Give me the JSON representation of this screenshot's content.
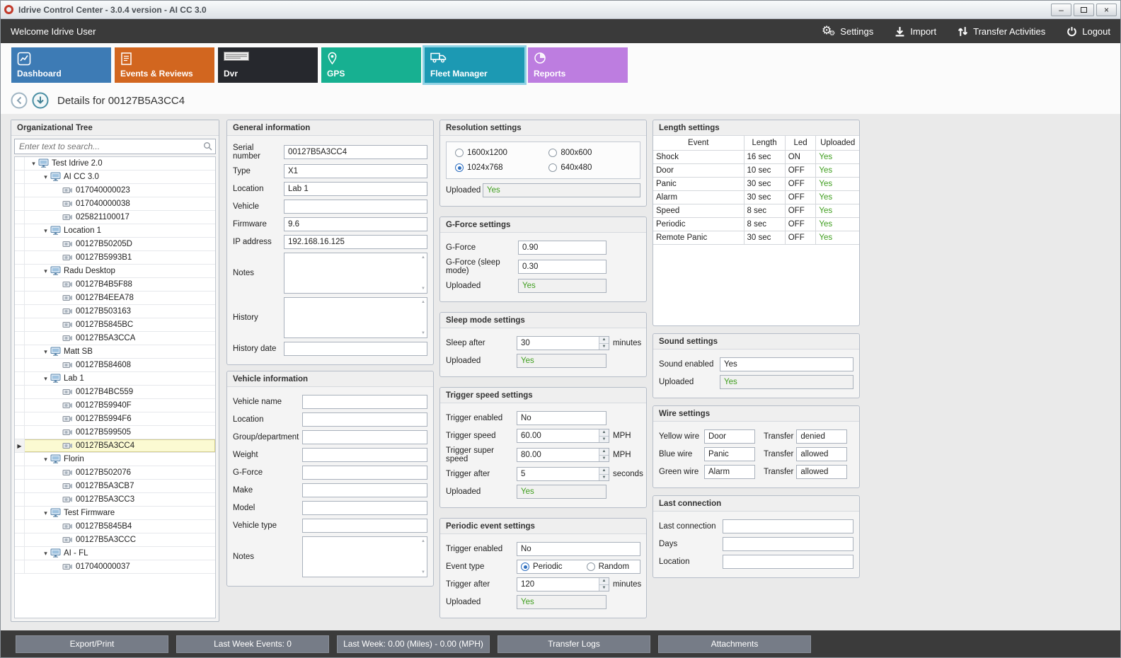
{
  "window": {
    "title": "Idrive Control Center - 3.0.4 version - AI CC 3.0"
  },
  "toolbar": {
    "welcome": "Welcome Idrive User",
    "actions": [
      {
        "label": "Settings",
        "icon": "gears-icon"
      },
      {
        "label": "Import",
        "icon": "import-icon"
      },
      {
        "label": "Transfer Activities",
        "icon": "transfer-icon"
      },
      {
        "label": "Logout",
        "icon": "power-icon"
      }
    ]
  },
  "tabs": [
    {
      "label": "Dashboard",
      "icon": "line-chart-icon",
      "color": "#3d7bb5",
      "active": false
    },
    {
      "label": "Events & Reviews",
      "icon": "events-icon",
      "color": "#d2661f",
      "active": false
    },
    {
      "label": "Dvr",
      "icon": "dvr-logo-icon",
      "color": "#26282d",
      "active": false
    },
    {
      "label": "GPS",
      "icon": "map-pin-icon",
      "color": "#17b091",
      "active": false
    },
    {
      "label": "Fleet Manager",
      "icon": "truck-icon",
      "color": "#1c99b3",
      "active": true
    },
    {
      "label": "Reports",
      "icon": "pie-chart-icon",
      "color": "#bd7de0",
      "active": false
    }
  ],
  "details_title": "Details for 00127B5A3CC4",
  "tree": {
    "title": "Organizational Tree",
    "search_placeholder": "Enter text to search...",
    "items": [
      {
        "label": "Test Idrive 2.0",
        "depth": 0,
        "type": "group"
      },
      {
        "label": "AI CC 3.0",
        "depth": 1,
        "type": "group"
      },
      {
        "label": "017040000023",
        "depth": 2,
        "type": "device"
      },
      {
        "label": "017040000038",
        "depth": 2,
        "type": "device"
      },
      {
        "label": "025821100017",
        "depth": 2,
        "type": "device"
      },
      {
        "label": "Location 1",
        "depth": 1,
        "type": "group"
      },
      {
        "label": "00127B50205D",
        "depth": 2,
        "type": "device"
      },
      {
        "label": "00127B5993B1",
        "depth": 2,
        "type": "device"
      },
      {
        "label": "Radu Desktop",
        "depth": 1,
        "type": "group"
      },
      {
        "label": "00127B4B5F88",
        "depth": 2,
        "type": "device"
      },
      {
        "label": "00127B4EEA78",
        "depth": 2,
        "type": "device"
      },
      {
        "label": "00127B503163",
        "depth": 2,
        "type": "device"
      },
      {
        "label": "00127B5845BC",
        "depth": 2,
        "type": "device"
      },
      {
        "label": "00127B5A3CCA",
        "depth": 2,
        "type": "device"
      },
      {
        "label": "Matt SB",
        "depth": 1,
        "type": "group"
      },
      {
        "label": "00127B584608",
        "depth": 2,
        "type": "device"
      },
      {
        "label": "Lab 1",
        "depth": 1,
        "type": "group"
      },
      {
        "label": "00127B4BC559",
        "depth": 2,
        "type": "device"
      },
      {
        "label": "00127B59940F",
        "depth": 2,
        "type": "device"
      },
      {
        "label": "00127B5994F6",
        "depth": 2,
        "type": "device"
      },
      {
        "label": "00127B599505",
        "depth": 2,
        "type": "device"
      },
      {
        "label": "00127B5A3CC4",
        "depth": 2,
        "type": "device",
        "selected": true
      },
      {
        "label": "Florin",
        "depth": 1,
        "type": "group"
      },
      {
        "label": "00127B502076",
        "depth": 2,
        "type": "device"
      },
      {
        "label": "00127B5A3CB7",
        "depth": 2,
        "type": "device"
      },
      {
        "label": "00127B5A3CC3",
        "depth": 2,
        "type": "device"
      },
      {
        "label": "Test Firmware",
        "depth": 1,
        "type": "group"
      },
      {
        "label": "00127B5845B4",
        "depth": 2,
        "type": "device"
      },
      {
        "label": "00127B5A3CCC",
        "depth": 2,
        "type": "device"
      },
      {
        "label": "AI - FL",
        "depth": 1,
        "type": "group"
      },
      {
        "label": "017040000037",
        "depth": 2,
        "type": "device"
      }
    ]
  },
  "panels": {
    "general_info": {
      "title": "General information",
      "fields": [
        {
          "label": "Serial number",
          "value": "00127B5A3CC4"
        },
        {
          "label": "Type",
          "value": "X1"
        },
        {
          "label": "Location",
          "value": "Lab 1"
        },
        {
          "label": "Vehicle",
          "value": ""
        },
        {
          "label": "Firmware",
          "value": "9.6"
        },
        {
          "label": "IP address",
          "value": "192.168.16.125"
        },
        {
          "label": "Notes",
          "value": "",
          "type": "textarea"
        },
        {
          "label": "History",
          "value": "",
          "type": "textarea"
        },
        {
          "label": "History date",
          "value": ""
        }
      ]
    },
    "vehicle_info": {
      "title": "Vehicle information",
      "fields": [
        {
          "label": "Vehicle name",
          "value": ""
        },
        {
          "label": "Location",
          "value": ""
        },
        {
          "label": "Group/department",
          "value": ""
        },
        {
          "label": "Weight",
          "value": ""
        },
        {
          "label": "G-Force",
          "value": ""
        },
        {
          "label": "Make",
          "value": ""
        },
        {
          "label": "Model",
          "value": ""
        },
        {
          "label": "Vehicle type",
          "value": ""
        },
        {
          "label": "Notes",
          "value": "",
          "type": "textarea"
        }
      ]
    },
    "resolution": {
      "title": "Resolution settings",
      "options": [
        {
          "label": "1600x1200",
          "checked": false
        },
        {
          "label": "800x600",
          "checked": false
        },
        {
          "label": "1024x768",
          "checked": true
        },
        {
          "label": "640x480",
          "checked": false
        }
      ],
      "fields": [
        {
          "label": "Uploaded",
          "value": "Yes",
          "readonly": true,
          "green": true
        }
      ]
    },
    "gforce": {
      "title": "G-Force settings",
      "fields": [
        {
          "label": "G-Force",
          "value": "0.90",
          "short": true
        },
        {
          "label": "G-Force (sleep mode)",
          "value": "0.30",
          "short": true
        },
        {
          "label": "Uploaded",
          "value": "Yes",
          "readonly": true,
          "green": true,
          "short": true
        }
      ]
    },
    "sleep": {
      "title": "Sleep mode settings",
      "fields": [
        {
          "label": "Sleep after",
          "value": "30",
          "unit": "minutes",
          "spinner": true
        },
        {
          "label": "Uploaded",
          "value": "Yes",
          "readonly": true,
          "green": true,
          "short": true
        }
      ]
    },
    "trigger_speed": {
      "title": "Trigger speed settings",
      "fields": [
        {
          "label": "Trigger enabled",
          "value": "No",
          "short": true
        },
        {
          "label": "Trigger speed",
          "value": "60.00",
          "unit": "MPH",
          "spinner": true
        },
        {
          "label": "Trigger super speed",
          "value": "80.00",
          "unit": "MPH",
          "spinner": true
        },
        {
          "label": "Trigger after",
          "value": "5",
          "unit": "seconds",
          "spinner": true
        },
        {
          "label": "Uploaded",
          "value": "Yes",
          "readonly": true,
          "green": true,
          "short": true
        }
      ]
    },
    "periodic": {
      "title": "Periodic event settings",
      "fields_top": [
        {
          "label": "Trigger enabled",
          "value": "No"
        }
      ],
      "event_type": {
        "label": "Event type",
        "options": [
          {
            "label": "Periodic",
            "checked": true
          },
          {
            "label": "Random",
            "checked": false
          }
        ]
      },
      "fields_bottom": [
        {
          "label": "Trigger after",
          "value": "120",
          "unit": "minutes",
          "spinner": true
        },
        {
          "label": "Uploaded",
          "value": "Yes",
          "readonly": true,
          "green": true,
          "short": true
        }
      ]
    },
    "length_settings": {
      "title": "Length settings",
      "columns": [
        "Event",
        "Length",
        "Led",
        "Uploaded"
      ],
      "rows": [
        [
          "Shock",
          "16 sec",
          "ON",
          "Yes"
        ],
        [
          "Door",
          "10 sec",
          "OFF",
          "Yes"
        ],
        [
          "Panic",
          "30 sec",
          "OFF",
          "Yes"
        ],
        [
          "Alarm",
          "30 sec",
          "OFF",
          "Yes"
        ],
        [
          "Speed",
          "8 sec",
          "OFF",
          "Yes"
        ],
        [
          "Periodic",
          "8 sec",
          "OFF",
          "Yes"
        ],
        [
          "Remote Panic",
          "30 sec",
          "OFF",
          "Yes"
        ]
      ]
    },
    "sound": {
      "title": "Sound settings",
      "fields": [
        {
          "label": "Sound enabled",
          "value": "Yes"
        },
        {
          "label": "Uploaded",
          "value": "Yes",
          "readonly": true,
          "green": true
        }
      ]
    },
    "wire": {
      "title": "Wire settings",
      "rows": [
        {
          "label": "Yellow wire",
          "value": "Door",
          "transfer_label": "Transfer",
          "transfer": "denied"
        },
        {
          "label": "Blue wire",
          "value": "Panic",
          "transfer_label": "Transfer",
          "transfer": "allowed"
        },
        {
          "label": "Green wire",
          "value": "Alarm",
          "transfer_label": "Transfer",
          "transfer": "allowed"
        }
      ]
    },
    "last_connection": {
      "title": "Last connection",
      "fields": [
        {
          "label": "Last connection",
          "value": ""
        },
        {
          "label": "Days",
          "value": ""
        },
        {
          "label": "Location",
          "value": ""
        }
      ]
    }
  },
  "bottom_bar": {
    "buttons": [
      "Export/Print",
      "Last Week Events: 0",
      "Last Week: 0.00 (Miles) - 0.00 (MPH)",
      "Transfer Logs",
      "Attachments"
    ]
  },
  "colors": {
    "uploaded_green": "#3f9e1e",
    "selected_row_bg": "#fbfad2",
    "active_tab_border": "#8fd2e4"
  }
}
